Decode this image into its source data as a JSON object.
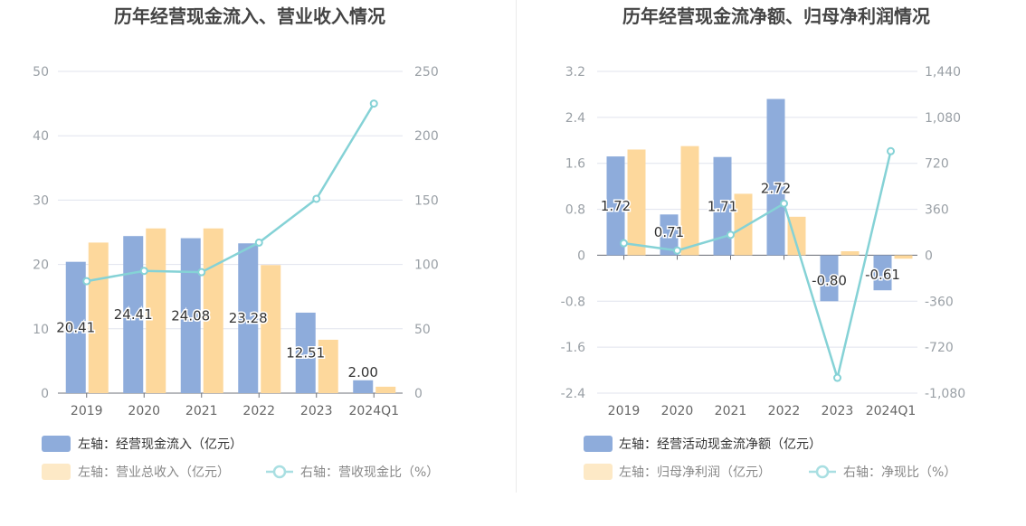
{
  "colors": {
    "blue": "#8eacdb",
    "orange": "#fdd89c",
    "line": "#85d2d6",
    "grid": "#e0e3ee",
    "text": "#555555",
    "axis": "#9aa0a6"
  },
  "chart_data": [
    {
      "type": "bar",
      "title": "历年经营现金流入、营业收入情况",
      "categories": [
        "2019",
        "2020",
        "2021",
        "2022",
        "2023",
        "2024Q1"
      ],
      "y_left": {
        "ticks": [
          "0",
          "10",
          "20",
          "30",
          "40",
          "50"
        ],
        "ylim": [
          0,
          50
        ]
      },
      "y_right": {
        "ticks": [
          "0",
          "50",
          "100",
          "150",
          "200",
          "250"
        ],
        "ylim": [
          0,
          250
        ]
      },
      "series": [
        {
          "name": "左轴：经营现金流入（亿元）",
          "axis": "left",
          "kind": "bar",
          "values": [
            20.41,
            24.41,
            24.08,
            23.28,
            12.51,
            2.0
          ],
          "labels": [
            "20.41",
            "24.41",
            "24.08",
            "23.28",
            "12.51",
            "2.00"
          ]
        },
        {
          "name": "左轴：营业总收入（亿元）",
          "axis": "left",
          "kind": "bar",
          "values": [
            23.4,
            25.6,
            25.6,
            19.9,
            8.3,
            1.0
          ]
        },
        {
          "name": "右轴：营收现金比（%）",
          "axis": "right",
          "kind": "line",
          "values": [
            87,
            95,
            94,
            117,
            151,
            225
          ]
        }
      ]
    },
    {
      "type": "bar",
      "title": "历年经营现金流净额、归母净利润情况",
      "categories": [
        "2019",
        "2020",
        "2021",
        "2022",
        "2023",
        "2024Q1"
      ],
      "y_left": {
        "ticks": [
          "-2.4",
          "-1.6",
          "-0.8",
          "0",
          "0.8",
          "1.6",
          "2.4",
          "3.2"
        ],
        "ylim": [
          -2.4,
          3.2
        ]
      },
      "y_right": {
        "ticks": [
          "-1,080",
          "-720",
          "-360",
          "0",
          "360",
          "720",
          "1,080",
          "1,440"
        ],
        "ylim": [
          -1080,
          1440
        ]
      },
      "series": [
        {
          "name": "左轴：经营活动现金流净额（亿元）",
          "axis": "left",
          "kind": "bar",
          "values": [
            1.72,
            0.71,
            1.71,
            2.72,
            -0.8,
            -0.61
          ],
          "labels": [
            "1.72",
            "0.71",
            "1.71",
            "2.72",
            "-0.80",
            "-0.61"
          ]
        },
        {
          "name": "左轴：归母净利润（亿元）",
          "axis": "left",
          "kind": "bar",
          "values": [
            1.84,
            1.9,
            1.07,
            0.67,
            0.07,
            -0.06
          ]
        },
        {
          "name": "右轴：净现比（%）",
          "axis": "right",
          "kind": "line",
          "values": [
            94,
            37,
            160,
            405,
            -960,
            815
          ]
        }
      ]
    }
  ]
}
